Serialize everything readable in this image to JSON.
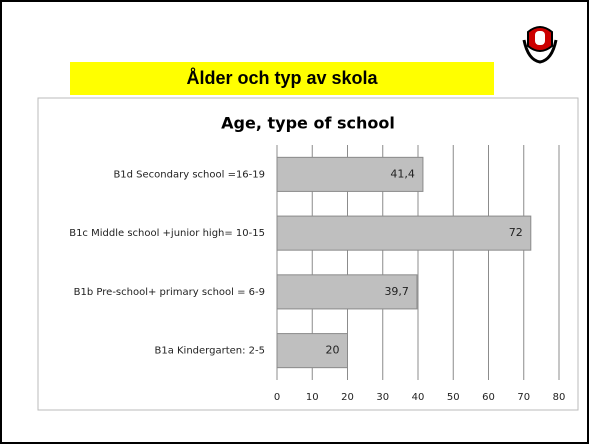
{
  "slide_title": "Ålder och typ av skola",
  "chart_data": {
    "type": "bar",
    "orientation": "horizontal",
    "title": "Age, type of school",
    "categories": [
      "B1d Secondary school =16-19",
      "B1c Middle school +junior high= 10-15",
      "B1b Pre-school+ primary school = 6-9",
      "B1a Kindergarten: 2-5"
    ],
    "values": [
      41.4,
      72,
      39.7,
      20
    ],
    "value_labels": [
      "41,4",
      "72",
      "39,7",
      "20"
    ],
    "color": "#bfbfbf",
    "xlim": [
      0,
      80
    ],
    "xticks": [
      0,
      10,
      20,
      30,
      40,
      50,
      60,
      70,
      80
    ],
    "grid": true
  }
}
